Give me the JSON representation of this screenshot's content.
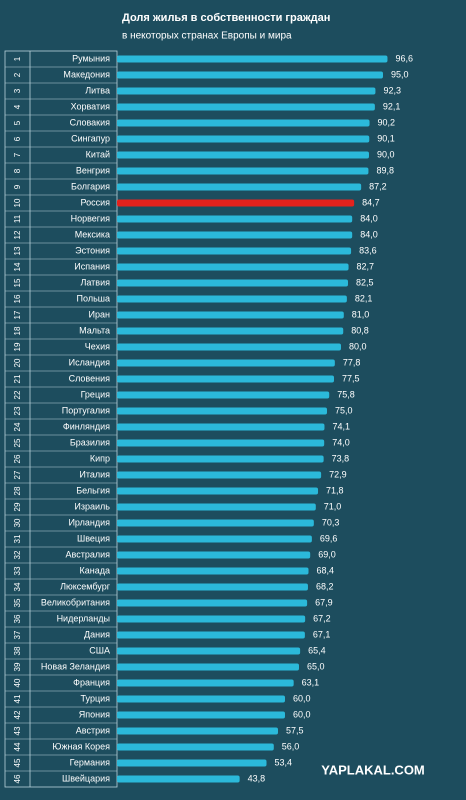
{
  "chart_data": {
    "type": "hbar",
    "title": "Доля жилья в собственности граждан",
    "subtitle": "в некоторых странах Европы и мира",
    "ranks": [
      1,
      2,
      3,
      4,
      5,
      6,
      7,
      8,
      9,
      10,
      11,
      12,
      13,
      14,
      15,
      16,
      17,
      18,
      19,
      20,
      21,
      22,
      23,
      24,
      25,
      26,
      27,
      28,
      29,
      30,
      31,
      32,
      33,
      34,
      35,
      36,
      37,
      38,
      39,
      40,
      41,
      42,
      43,
      44,
      45,
      46
    ],
    "categories": [
      "Румыния",
      "Македония",
      "Литва",
      "Хорватия",
      "Словакия",
      "Сингапур",
      "Китай",
      "Венгрия",
      "Болгария",
      "Россия",
      "Норвегия",
      "Мексика",
      "Эстония",
      "Испания",
      "Латвия",
      "Польша",
      "Иран",
      "Мальта",
      "Чехия",
      "Исландия",
      "Словения",
      "Греция",
      "Португалия",
      "Финляндия",
      "Бразилия",
      "Кипр",
      "Италия",
      "Бельгия",
      "Израиль",
      "Ирландия",
      "Швеция",
      "Австралия",
      "Канада",
      "Люксембург",
      "Великобритания",
      "Нидерланды",
      "Дания",
      "США",
      "Новая Зеландия",
      "Франция",
      "Турция",
      "Япония",
      "Австрия",
      "Южная Корея",
      "Германия",
      "Швейцария"
    ],
    "values": [
      96.6,
      95.0,
      92.3,
      92.1,
      90.2,
      90.1,
      90.0,
      89.8,
      87.2,
      84.7,
      84.0,
      84.0,
      83.6,
      82.7,
      82.5,
      82.1,
      81.0,
      80.8,
      80.0,
      77.8,
      77.5,
      75.8,
      75.0,
      74.1,
      74.0,
      73.8,
      72.9,
      71.8,
      71.0,
      70.3,
      69.6,
      69.0,
      68.4,
      68.2,
      67.9,
      67.2,
      67.1,
      65.4,
      65.0,
      63.1,
      60.0,
      60.0,
      57.5,
      56.0,
      53.4,
      43.8
    ],
    "value_labels": [
      "96,6",
      "95,0",
      "92,3",
      "92,1",
      "90,2",
      "90,1",
      "90,0",
      "89,8",
      "87,2",
      "84,7",
      "84,0",
      "84,0",
      "83,6",
      "82,7",
      "82,5",
      "82,1",
      "81,0",
      "80,8",
      "80,0",
      "77,8",
      "77,5",
      "75,8",
      "75,0",
      "74,1",
      "74,0",
      "73,8",
      "72,9",
      "71,8",
      "71,0",
      "70,3",
      "69,6",
      "69,0",
      "68,4",
      "68,2",
      "67,9",
      "67,2",
      "67,1",
      "65,4",
      "65,0",
      "63,1",
      "60,0",
      "60,0",
      "57,5",
      "56,0",
      "53,4",
      "43,8"
    ],
    "colors": [
      "#2bb9da",
      "#2bb9da",
      "#2bb9da",
      "#2bb9da",
      "#2bb9da",
      "#2bb9da",
      "#2bb9da",
      "#2bb9da",
      "#2bb9da",
      "#e3221d",
      "#2bb9da",
      "#2bb9da",
      "#2bb9da",
      "#2bb9da",
      "#2bb9da",
      "#2bb9da",
      "#2bb9da",
      "#2bb9da",
      "#2bb9da",
      "#2bb9da",
      "#2bb9da",
      "#2bb9da",
      "#2bb9da",
      "#2bb9da",
      "#2bb9da",
      "#2bb9da",
      "#2bb9da",
      "#2bb9da",
      "#2bb9da",
      "#2bb9da",
      "#2bb9da",
      "#2bb9da",
      "#2bb9da",
      "#2bb9da",
      "#2bb9da",
      "#2bb9da",
      "#2bb9da",
      "#2bb9da",
      "#2bb9da",
      "#2bb9da",
      "#2bb9da",
      "#2bb9da",
      "#2bb9da",
      "#2bb9da",
      "#2bb9da",
      "#2bb9da"
    ],
    "xlim": [
      0,
      100
    ],
    "watermark": "YAPLAKAL.COM"
  }
}
